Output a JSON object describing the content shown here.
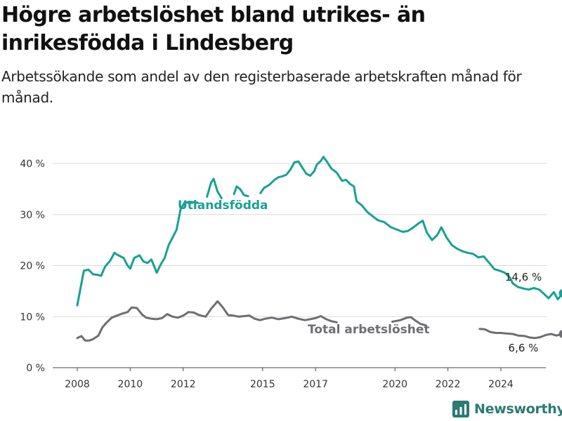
{
  "header": {
    "title": "Högre arbetslöshet bland utrikes- än inrikesfödda i Lindesberg",
    "subtitle": "Arbetssökande som andel av den registerbaserade arbetskraften månad för månad."
  },
  "brand": {
    "name": "Newsworthy",
    "icon": "bar-chart-logo-icon",
    "color": "#2b7a73"
  },
  "chart_data": {
    "type": "line",
    "x_unit": "year",
    "x_ticks": [
      2008,
      2010,
      2012,
      2015,
      2017,
      2020,
      2022,
      2024
    ],
    "x_tick_labels": [
      "2008",
      "2010",
      "2012",
      "2015",
      "2017",
      "2020",
      "2022",
      "2024"
    ],
    "y_ticks": [
      0,
      10,
      20,
      30,
      40
    ],
    "y_tick_labels": [
      "0 %",
      "10 %",
      "20 %",
      "30 %",
      "40 %"
    ],
    "ylim": [
      0,
      40
    ],
    "xlim": [
      2007.5,
      2025.5
    ],
    "grid": true,
    "legend": "inline labels",
    "series": [
      {
        "name": "Utlandsfödda",
        "color": "#17a195",
        "end_label": "14,6 %",
        "points": [
          [
            2008.0,
            12.2
          ],
          [
            2008.12,
            15.5
          ],
          [
            2008.25,
            19.0
          ],
          [
            2008.42,
            19.2
          ],
          [
            2008.6,
            18.3
          ],
          [
            2008.75,
            18.2
          ],
          [
            2008.9,
            18.0
          ],
          [
            2009.05,
            19.8
          ],
          [
            2009.25,
            21.0
          ],
          [
            2009.4,
            22.5
          ],
          [
            2009.55,
            22.0
          ],
          [
            2009.75,
            21.5
          ],
          [
            2009.9,
            20.0
          ],
          [
            2010.0,
            19.4
          ],
          [
            2010.15,
            21.5
          ],
          [
            2010.35,
            22.0
          ],
          [
            2010.5,
            20.8
          ],
          [
            2010.65,
            20.5
          ],
          [
            2010.8,
            21.2
          ],
          [
            2011.0,
            18.6
          ],
          [
            2011.15,
            20.2
          ],
          [
            2011.3,
            21.5
          ],
          [
            2011.45,
            24.0
          ],
          [
            2011.6,
            25.5
          ],
          [
            2011.75,
            27.0
          ],
          [
            2011.9,
            31.0
          ],
          [
            2012.05,
            32.3
          ],
          [
            2012.25,
            32.5
          ],
          [
            2012.4,
            32.4
          ]
        ],
        "points_after_label": [
          [
            2012.9,
            33.5
          ],
          [
            2013.05,
            36.2
          ],
          [
            2013.15,
            37.0
          ],
          [
            2013.3,
            34.5
          ],
          [
            2013.45,
            33.2
          ]
        ],
        "points_mid": [
          [
            2013.92,
            34.0
          ],
          [
            2014.02,
            35.5
          ],
          [
            2014.15,
            35.0
          ],
          [
            2014.3,
            33.8
          ],
          [
            2014.45,
            33.6
          ]
        ],
        "points_tail": [
          [
            2014.92,
            34.2
          ],
          [
            2015.05,
            35.2
          ],
          [
            2015.25,
            35.8
          ],
          [
            2015.45,
            36.8
          ],
          [
            2015.6,
            37.3
          ],
          [
            2015.75,
            37.5
          ],
          [
            2015.9,
            37.8
          ],
          [
            2016.05,
            38.8
          ],
          [
            2016.2,
            40.2
          ],
          [
            2016.35,
            40.4
          ],
          [
            2016.5,
            39.2
          ],
          [
            2016.65,
            38.0
          ],
          [
            2016.8,
            37.6
          ],
          [
            2016.95,
            38.5
          ],
          [
            2017.05,
            39.8
          ],
          [
            2017.2,
            40.5
          ],
          [
            2017.3,
            41.3
          ],
          [
            2017.45,
            40.2
          ],
          [
            2017.6,
            39.0
          ],
          [
            2017.8,
            38.2
          ],
          [
            2018.0,
            36.6
          ],
          [
            2018.15,
            36.8
          ],
          [
            2018.3,
            36.0
          ],
          [
            2018.45,
            35.5
          ],
          [
            2018.55,
            32.6
          ],
          [
            2018.75,
            31.8
          ],
          [
            2018.95,
            30.5
          ],
          [
            2019.15,
            29.7
          ],
          [
            2019.35,
            28.9
          ],
          [
            2019.6,
            28.5
          ],
          [
            2019.85,
            27.5
          ],
          [
            2020.1,
            27.0
          ],
          [
            2020.3,
            26.6
          ],
          [
            2020.5,
            26.8
          ],
          [
            2020.7,
            27.5
          ],
          [
            2020.9,
            28.3
          ],
          [
            2021.05,
            28.8
          ],
          [
            2021.2,
            26.5
          ],
          [
            2021.4,
            25.0
          ],
          [
            2021.6,
            26.0
          ],
          [
            2021.75,
            27.5
          ],
          [
            2021.95,
            25.5
          ],
          [
            2022.15,
            24.0
          ],
          [
            2022.35,
            23.3
          ],
          [
            2022.55,
            22.8
          ],
          [
            2022.75,
            22.5
          ],
          [
            2022.95,
            22.3
          ],
          [
            2023.15,
            21.6
          ],
          [
            2023.35,
            21.8
          ],
          [
            2023.55,
            20.6
          ],
          [
            2023.75,
            19.3
          ],
          [
            2023.95,
            19.0
          ],
          [
            2024.15,
            18.6
          ],
          [
            2024.35,
            17.6
          ],
          [
            2024.45,
            16.5
          ],
          [
            2024.65,
            15.8
          ],
          [
            2024.85,
            15.5
          ],
          [
            2025.05,
            15.3
          ],
          [
            2025.25,
            15.6
          ],
          [
            2025.45,
            15.3
          ],
          [
            2025.6,
            14.6
          ],
          [
            2025.8,
            13.6
          ],
          [
            2026.0,
            14.8
          ],
          [
            2026.15,
            13.4
          ],
          [
            2026.35,
            14.6
          ]
        ]
      },
      {
        "name": "Total arbetslöshet",
        "color": "#6e6e73",
        "end_label": "6,6 %",
        "points": [
          [
            2008.0,
            5.8
          ],
          [
            2008.15,
            6.2
          ],
          [
            2008.3,
            5.3
          ],
          [
            2008.45,
            5.3
          ],
          [
            2008.6,
            5.6
          ],
          [
            2008.8,
            6.3
          ],
          [
            2008.95,
            7.9
          ],
          [
            2009.1,
            8.8
          ],
          [
            2009.3,
            9.8
          ],
          [
            2009.5,
            10.2
          ],
          [
            2009.7,
            10.6
          ],
          [
            2009.9,
            10.9
          ],
          [
            2010.05,
            11.8
          ],
          [
            2010.25,
            11.7
          ],
          [
            2010.45,
            10.4
          ],
          [
            2010.6,
            9.8
          ],
          [
            2010.8,
            9.6
          ],
          [
            2011.0,
            9.5
          ],
          [
            2011.2,
            9.7
          ],
          [
            2011.4,
            10.5
          ],
          [
            2011.6,
            10.0
          ],
          [
            2011.8,
            9.8
          ],
          [
            2012.0,
            10.2
          ],
          [
            2012.2,
            10.9
          ],
          [
            2012.4,
            10.8
          ],
          [
            2012.6,
            10.3
          ],
          [
            2012.85,
            10.0
          ],
          [
            2013.05,
            11.5
          ],
          [
            2013.3,
            13.0
          ],
          [
            2013.5,
            11.8
          ],
          [
            2013.7,
            10.3
          ],
          [
            2013.9,
            10.2
          ],
          [
            2014.1,
            10.0
          ],
          [
            2014.3,
            10.1
          ],
          [
            2014.5,
            10.2
          ],
          [
            2014.7,
            9.6
          ],
          [
            2014.9,
            9.3
          ],
          [
            2015.1,
            9.6
          ],
          [
            2015.35,
            9.8
          ],
          [
            2015.6,
            9.5
          ],
          [
            2015.85,
            9.7
          ],
          [
            2016.1,
            10.0
          ],
          [
            2016.35,
            9.6
          ],
          [
            2016.6,
            9.3
          ],
          [
            2016.8,
            9.5
          ],
          [
            2017.0,
            9.7
          ],
          [
            2017.2,
            10.1
          ],
          [
            2017.4,
            9.5
          ],
          [
            2017.6,
            9.1
          ],
          [
            2017.8,
            8.9
          ]
        ],
        "points_tail": [
          [
            2019.9,
            9.0
          ],
          [
            2020.2,
            9.3
          ],
          [
            2020.45,
            9.8
          ],
          [
            2020.6,
            9.9
          ],
          [
            2020.75,
            9.3
          ],
          [
            2020.95,
            8.6
          ],
          [
            2021.15,
            8.3
          ]
        ],
        "points_end": [
          [
            2023.2,
            7.6
          ],
          [
            2023.4,
            7.5
          ],
          [
            2023.6,
            7.0
          ],
          [
            2023.8,
            6.8
          ],
          [
            2024.0,
            6.8
          ],
          [
            2024.2,
            6.7
          ],
          [
            2024.45,
            6.6
          ],
          [
            2024.65,
            6.3
          ],
          [
            2024.9,
            6.2
          ],
          [
            2025.1,
            5.9
          ],
          [
            2025.3,
            5.8
          ],
          [
            2025.5,
            6.0
          ],
          [
            2025.7,
            6.4
          ],
          [
            2025.9,
            6.6
          ],
          [
            2026.1,
            6.3
          ],
          [
            2026.25,
            6.5
          ],
          [
            2026.35,
            6.6
          ]
        ]
      }
    ]
  }
}
